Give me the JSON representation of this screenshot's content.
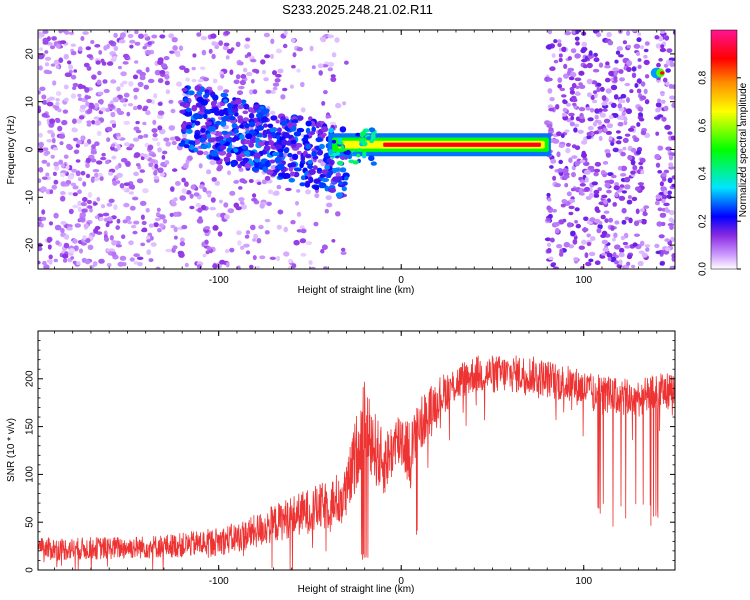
{
  "title": "S233.2025.248.21.02.R11",
  "chart_data": [
    {
      "type": "heatmap",
      "xlabel": "Height of straight line (km)",
      "ylabel": "Frequency (Hz)",
      "xlim": [
        -199,
        150
      ],
      "ylim": [
        -25,
        25
      ],
      "xticks": [
        -100,
        0,
        100
      ],
      "xtick_labels": [
        "-100",
        "0",
        "100"
      ],
      "yticks": [
        -20,
        -10,
        0,
        10,
        20
      ],
      "ytick_labels": [
        "-20",
        "-10",
        "0",
        "10",
        "20"
      ],
      "colorbar": {
        "label": "Normalized spectral amplitude",
        "range": [
          0,
          1
        ],
        "ticks": [
          0,
          0.2,
          0.4,
          0.6,
          0.8
        ],
        "tick_labels": [
          "0.0",
          "0.2",
          "0.4",
          "0.6",
          "0.8"
        ],
        "colors": [
          "#ffffff",
          "#8a2be2",
          "#0000ff",
          "#00e5ff",
          "#00ff00",
          "#ffff00",
          "#ff8c00",
          "#ff0000",
          "#ff1493"
        ]
      },
      "features": [
        {
          "name": "background speckle",
          "x_range": [
            -199,
            -30
          ],
          "freq_range": [
            -25,
            25
          ],
          "amplitude": 0.1
        },
        {
          "name": "strong signal band",
          "x_range": [
            -40,
            82
          ],
          "freq_center": 1,
          "freq_half_width": 1.5,
          "amplitude": 0.9
        },
        {
          "name": "blob cluster",
          "x_range": [
            -120,
            -30
          ],
          "freq_range": [
            -8,
            12
          ],
          "amplitude": 0.2
        },
        {
          "name": "right speckle",
          "x_range": [
            80,
            150
          ],
          "freq_range": [
            -25,
            25
          ],
          "amplitude": 0.12
        },
        {
          "name": "right hot spot",
          "x": 142,
          "freq": 16,
          "amplitude": 0.9
        }
      ]
    },
    {
      "type": "line",
      "xlabel": "Height of straight line (km)",
      "ylabel": "SNR (10 * v/v)",
      "xlim": [
        -199,
        150
      ],
      "ylim": [
        0,
        250
      ],
      "xticks": [
        -100,
        0,
        100
      ],
      "xtick_labels": [
        "-100",
        "0",
        "100"
      ],
      "yticks": [
        0,
        50,
        100,
        150,
        200
      ],
      "ytick_labels": [
        "0",
        "50",
        "100",
        "150",
        "200"
      ],
      "color": "#ee3333",
      "series": [
        {
          "name": "SNR",
          "x": [
            -199,
            -180,
            -160,
            -140,
            -120,
            -100,
            -90,
            -80,
            -70,
            -60,
            -50,
            -40,
            -30,
            -25,
            -20,
            -15,
            -10,
            -5,
            0,
            5,
            10,
            15,
            20,
            30,
            40,
            50,
            60,
            70,
            80,
            90,
            100,
            105,
            110,
            120,
            130,
            140,
            150
          ],
          "values": [
            22,
            22,
            23,
            24,
            26,
            30,
            34,
            40,
            48,
            56,
            62,
            68,
            80,
            120,
            160,
            130,
            110,
            125,
            140,
            120,
            150,
            165,
            180,
            195,
            205,
            205,
            205,
            205,
            200,
            195,
            190,
            185,
            185,
            180,
            180,
            185,
            190
          ],
          "noise_amplitude": [
            12,
            12,
            12,
            12,
            13,
            15,
            16,
            18,
            20,
            22,
            24,
            26,
            30,
            40,
            40,
            40,
            35,
            30,
            35,
            35,
            30,
            25,
            22,
            20,
            20,
            20,
            20,
            20,
            20,
            20,
            20,
            20,
            20,
            20,
            20,
            20,
            20
          ],
          "dropouts": [
            {
              "x_range": [
                105,
                145
              ],
              "min_value": 45
            }
          ]
        }
      ]
    }
  ]
}
